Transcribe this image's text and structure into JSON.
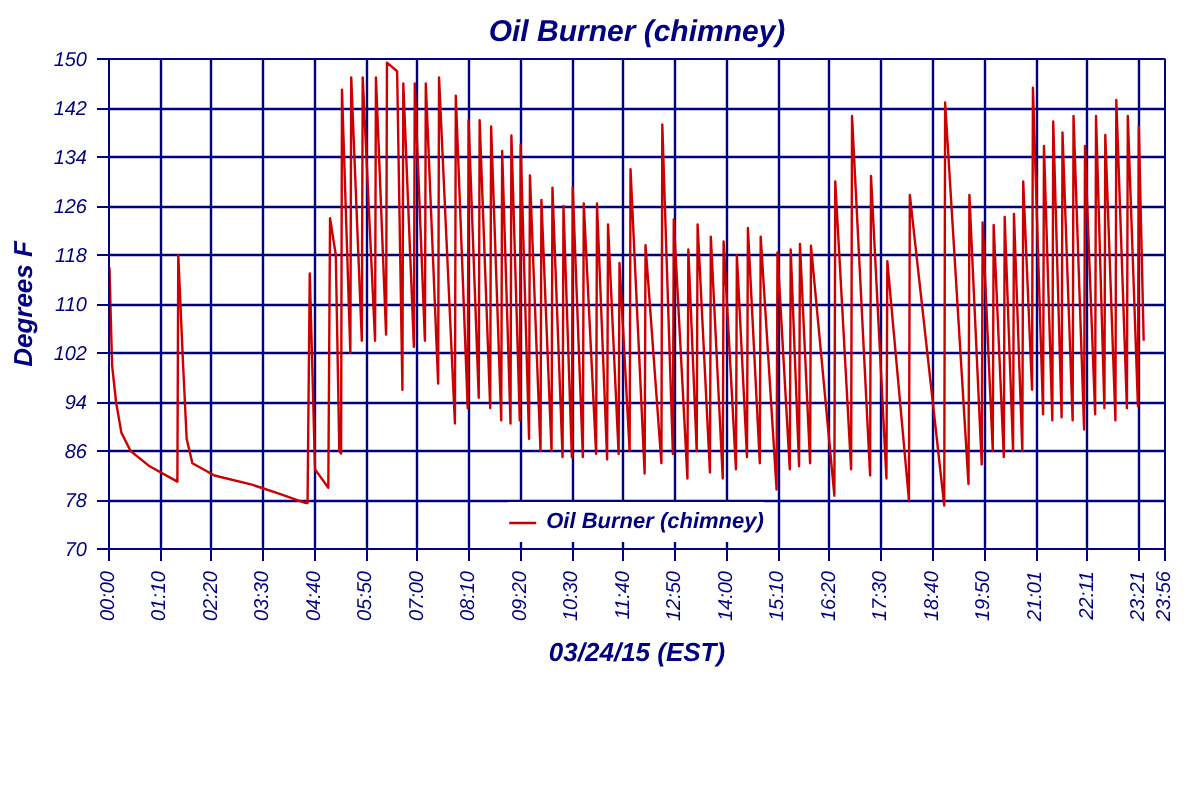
{
  "chart_data": {
    "type": "line",
    "title": "Oil Burner (chimney)",
    "xlabel": "03/24/15 (EST)",
    "ylabel": "Degrees F",
    "xlim": [
      0,
      23.9333
    ],
    "ylim": [
      70,
      150
    ],
    "xticks": [
      {
        "value": 0,
        "label": "00:00"
      },
      {
        "value": 1.1667,
        "label": "01:10"
      },
      {
        "value": 2.3333,
        "label": "02:20"
      },
      {
        "value": 3.5,
        "label": "03:30"
      },
      {
        "value": 4.6667,
        "label": "04:40"
      },
      {
        "value": 5.8333,
        "label": "05:50"
      },
      {
        "value": 7,
        "label": "07:00"
      },
      {
        "value": 8.1667,
        "label": "08:10"
      },
      {
        "value": 9.3333,
        "label": "09:20"
      },
      {
        "value": 10.5,
        "label": "10:30"
      },
      {
        "value": 11.6667,
        "label": "11:40"
      },
      {
        "value": 12.8333,
        "label": "12:50"
      },
      {
        "value": 14,
        "label": "14:00"
      },
      {
        "value": 15.1667,
        "label": "15:10"
      },
      {
        "value": 16.3333,
        "label": "16:20"
      },
      {
        "value": 17.5,
        "label": "17:30"
      },
      {
        "value": 18.6667,
        "label": "18:40"
      },
      {
        "value": 19.8333,
        "label": "19:50"
      },
      {
        "value": 21.0167,
        "label": "21:01"
      },
      {
        "value": 22.1833,
        "label": "22:11"
      },
      {
        "value": 23.35,
        "label": "23:21"
      },
      {
        "value": 23.9333,
        "label": "23:56"
      }
    ],
    "yticks": [
      70,
      78,
      86,
      94,
      102,
      110,
      118,
      126,
      134,
      142,
      150
    ],
    "grid": true,
    "legend": "bottom",
    "marker": "none",
    "line_style": "solid",
    "series": [
      {
        "name": "Oil Burner (chimney)",
        "color": "#cc0000",
        "x": [
          0.01,
          0.07,
          0.16,
          0.28,
          0.49,
          0.92,
          1.55,
          1.57,
          1.68,
          1.76,
          1.89,
          2.39,
          3.24,
          3.87,
          4.46,
          4.5,
          4.55,
          4.67,
          4.97,
          5.01,
          5.14,
          5.22,
          5.26,
          5.28,
          5.47,
          5.49,
          5.73,
          5.75,
          6.03,
          6.05,
          6.28,
          6.3,
          6.53,
          6.65,
          6.67,
          6.91,
          6.93,
          7.16,
          7.18,
          7.46,
          7.48,
          7.84,
          7.86,
          8.13,
          8.15,
          8.38,
          8.4,
          8.64,
          8.66,
          8.89,
          8.91,
          9.1,
          9.12,
          9.31,
          9.33,
          9.52,
          9.54,
          9.78,
          9.8,
          10.03,
          10.05,
          10.28,
          10.3,
          10.49,
          10.51,
          10.74,
          10.76,
          11.04,
          11.06,
          11.29,
          11.31,
          11.55,
          11.57,
          11.8,
          11.82,
          12.14,
          12.16,
          12.52,
          12.54,
          12.78,
          12.8,
          13.11,
          13.13,
          13.32,
          13.34,
          13.62,
          13.64,
          13.91,
          13.93,
          14.21,
          14.23,
          14.46,
          14.48,
          14.75,
          14.77,
          15.13,
          15.15,
          15.43,
          15.45,
          15.64,
          15.66,
          15.89,
          15.91,
          16.44,
          16.46,
          16.82,
          16.84,
          17.25,
          17.27,
          17.62,
          17.64,
          18.13,
          18.15,
          18.93,
          18.95,
          19.48,
          19.5,
          19.78,
          19.8,
          20.03,
          20.05,
          20.28,
          20.3,
          20.49,
          20.51,
          20.7,
          20.72,
          20.92,
          20.94,
          21.17,
          21.19,
          21.38,
          21.4,
          21.59,
          21.61,
          21.84,
          21.86,
          22.1,
          22.12,
          22.35,
          22.37,
          22.56,
          22.58,
          22.81,
          22.83,
          23.07,
          23.09,
          23.32,
          23.34,
          23.45
        ],
        "values": [
          116,
          100,
          94,
          89,
          86,
          83.5,
          81,
          118,
          100,
          88,
          84,
          82,
          80.5,
          79,
          77.5,
          77.5,
          115,
          83,
          80,
          124,
          118,
          86,
          85.6,
          145,
          102,
          147,
          104,
          147,
          104,
          147,
          105,
          149.4,
          148,
          96,
          146,
          103,
          146,
          104,
          146,
          97,
          147,
          90.5,
          144,
          93,
          140,
          94.7,
          140,
          93,
          139,
          91,
          135,
          90.5,
          137.5,
          91,
          136,
          88,
          131,
          86,
          127,
          86,
          129,
          85,
          126,
          85,
          129,
          85,
          126.4,
          85.5,
          126.4,
          84.6,
          123,
          85.5,
          116.7,
          86,
          132,
          82.3,
          119.6,
          84,
          139.3,
          85.5,
          123.8,
          81.5,
          118.9,
          86,
          123,
          82.5,
          121,
          81.5,
          120.2,
          83,
          118,
          85,
          122.4,
          84,
          121,
          79.7,
          118.4,
          83,
          118.9,
          83.5,
          119.8,
          84,
          119.5,
          78.7,
          130,
          83,
          140.7,
          82,
          130.9,
          81.5,
          117,
          78,
          127.8,
          77.1,
          142.9,
          80.6,
          127.8,
          83.8,
          123.3,
          86,
          122.9,
          85,
          124.2,
          86,
          124.7,
          86,
          130,
          96,
          145.3,
          92,
          135.8,
          91,
          139.8,
          91.5,
          138,
          91,
          140.7,
          89.5,
          135.8,
          92,
          140.7,
          93,
          137.6,
          91,
          143.3,
          93,
          140.7,
          93.3,
          138.9,
          104
        ]
      }
    ]
  }
}
